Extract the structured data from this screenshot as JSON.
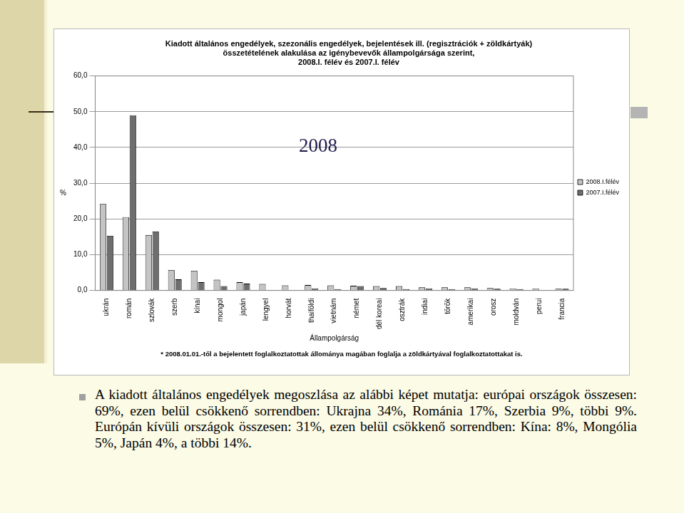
{
  "chart_data": {
    "type": "bar",
    "title": [
      "Kiadott általános engedélyek, szezonális engedélyek, bejelentések ill. (regisztrációk + zöldkártyák)",
      "összetételének alakulása az igénybevevők állampolgársága szerint,",
      "2008.I. félév és 2007.I. félév"
    ],
    "categories": [
      "ukrán",
      "román",
      "szlovák",
      "szerb",
      "kínai",
      "mongol",
      "japán",
      "lengyel",
      "horvát",
      "thaiföldi",
      "vietnám",
      "német",
      "dél koreai",
      "osztrák",
      "indiai",
      "török",
      "amerikai",
      "orosz",
      "moldván",
      "perui",
      "francia"
    ],
    "series": [
      {
        "name": "2008.I.félév",
        "color": "#c4c4c4",
        "values": [
          24.2,
          20.5,
          15.5,
          5.7,
          5.5,
          3.0,
          2.3,
          1.8,
          1.4,
          1.5,
          1.4,
          1.3,
          1.2,
          1.2,
          0.9,
          0.9,
          0.9,
          0.7,
          0.6,
          0.6,
          0.5
        ]
      },
      {
        "name": "2007.I.félév",
        "color": "#6e6e6e",
        "values": [
          15.3,
          49.0,
          16.5,
          3.1,
          2.3,
          1.2,
          1.9,
          0.0,
          0.0,
          0.6,
          0.4,
          1.2,
          0.7,
          0.4,
          0.6,
          0.4,
          0.6,
          0.5,
          0.4,
          0.0,
          0.5
        ]
      }
    ],
    "ylim": [
      0,
      60
    ],
    "yticks": [
      {
        "value": 0,
        "label": "0,0"
      },
      {
        "value": 10,
        "label": "10,0"
      },
      {
        "value": 20,
        "label": "20,0"
      },
      {
        "value": 30,
        "label": "30,0"
      },
      {
        "value": 40,
        "label": "40,0"
      },
      {
        "value": 50,
        "label": "50,0"
      },
      {
        "value": 60,
        "label": "60,0"
      }
    ],
    "x_label": "Állampolgárság",
    "y_label": "%",
    "grid": true,
    "legend": "right",
    "annotation": "2008",
    "footnote": "* 2008.01.01.-től a bejelentett foglalkoztatottak állománya magában foglalja a zöldkártyával foglalkoztatottakat is."
  },
  "text": "A kiadott általános engedélyek megoszlása az alábbi képet mutatja: európai országok összesen: 69%, ezen belül csökkenő sorrendben: Ukrajna 34%, Románia 17%, Szerbia 9%, többi 9%. Európán kívüli országok összesen: 31%, ezen belül csökkenő sorrendben: Kína: 8%, Mongólia 5%, Japán 4%, a többi 14%."
}
